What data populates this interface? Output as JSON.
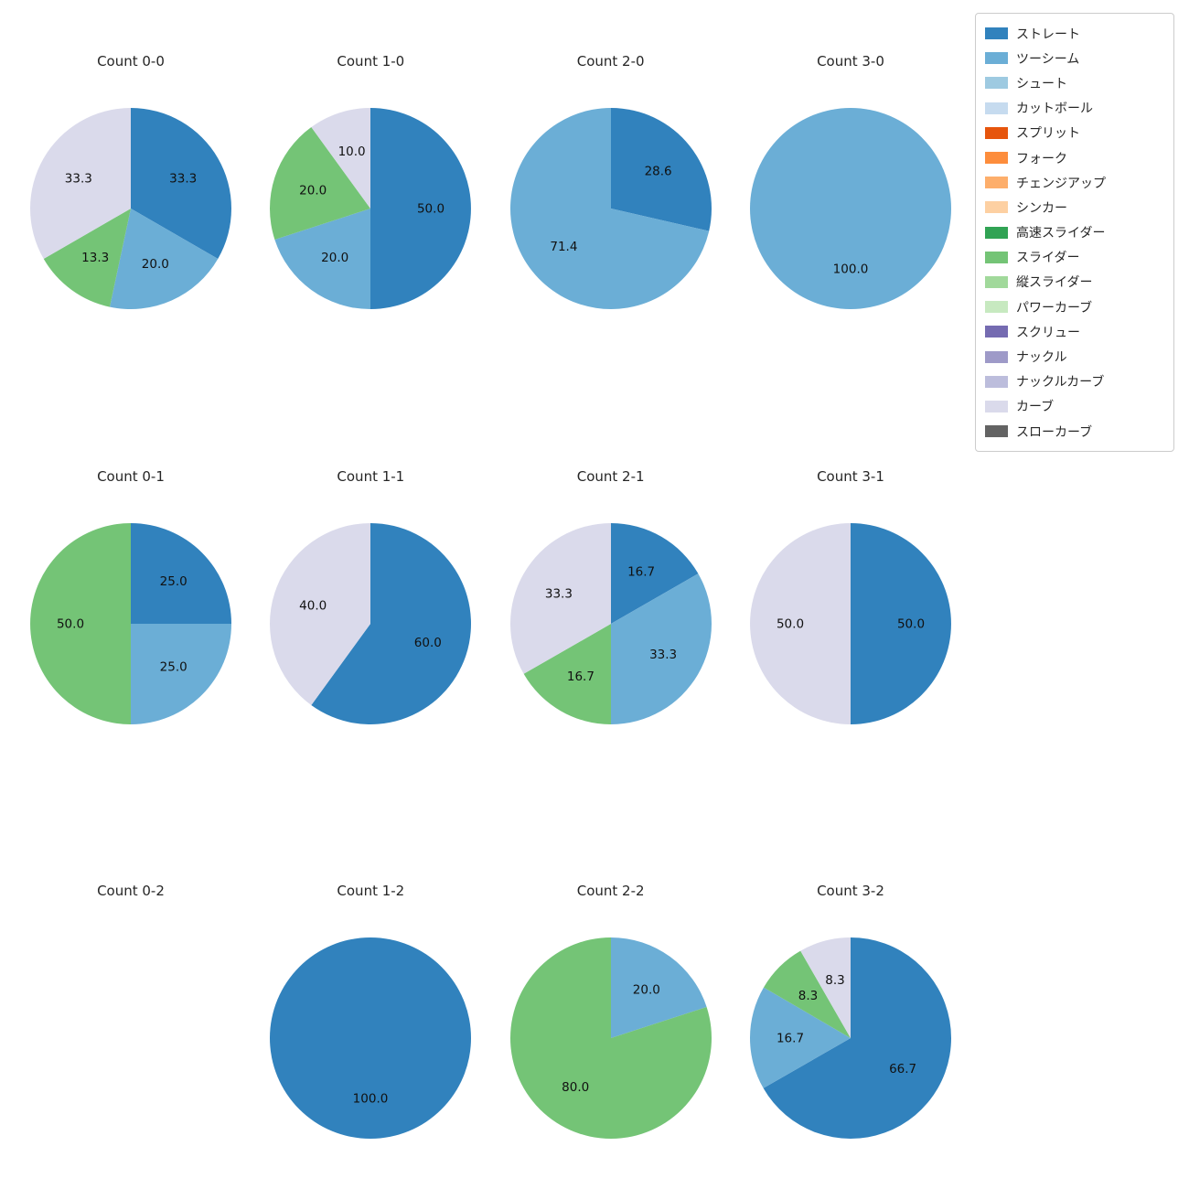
{
  "legend": {
    "items": [
      {
        "label": "ストレート",
        "color": "#3182bd"
      },
      {
        "label": "ツーシーム",
        "color": "#6baed6"
      },
      {
        "label": "シュート",
        "color": "#9ecae1"
      },
      {
        "label": "カットボール",
        "color": "#c6dbef"
      },
      {
        "label": "スプリット",
        "color": "#e6550d"
      },
      {
        "label": "フォーク",
        "color": "#fd8d3c"
      },
      {
        "label": "チェンジアップ",
        "color": "#fdae6b"
      },
      {
        "label": "シンカー",
        "color": "#fdd0a2"
      },
      {
        "label": "高速スライダー",
        "color": "#31a354"
      },
      {
        "label": "スライダー",
        "color": "#74c476"
      },
      {
        "label": "縦スライダー",
        "color": "#a1d99b"
      },
      {
        "label": "パワーカーブ",
        "color": "#c7e9c0"
      },
      {
        "label": "スクリュー",
        "color": "#756bb1"
      },
      {
        "label": "ナックル",
        "color": "#9e9ac8"
      },
      {
        "label": "ナックルカーブ",
        "color": "#bcbddc"
      },
      {
        "label": "カーブ",
        "color": "#dadaeb"
      },
      {
        "label": "スローカーブ",
        "color": "#636363"
      }
    ]
  },
  "chart_data": [
    {
      "type": "pie",
      "title": "Count 0-0",
      "slices": [
        {
          "label": "ストレート",
          "value": 33.3
        },
        {
          "label": "ツーシーム",
          "value": 20.0
        },
        {
          "label": "スライダー",
          "value": 13.3
        },
        {
          "label": "カーブ",
          "value": 33.3
        }
      ]
    },
    {
      "type": "pie",
      "title": "Count 1-0",
      "slices": [
        {
          "label": "ストレート",
          "value": 50.0
        },
        {
          "label": "ツーシーム",
          "value": 20.0
        },
        {
          "label": "スライダー",
          "value": 20.0
        },
        {
          "label": "カーブ",
          "value": 10.0
        }
      ]
    },
    {
      "type": "pie",
      "title": "Count 2-0",
      "slices": [
        {
          "label": "ストレート",
          "value": 28.6
        },
        {
          "label": "ツーシーム",
          "value": 71.4
        }
      ]
    },
    {
      "type": "pie",
      "title": "Count 3-0",
      "slices": [
        {
          "label": "ツーシーム",
          "value": 100.0
        }
      ]
    },
    {
      "type": "pie",
      "title": "Count 0-1",
      "slices": [
        {
          "label": "ストレート",
          "value": 25.0
        },
        {
          "label": "ツーシーム",
          "value": 25.0
        },
        {
          "label": "スライダー",
          "value": 50.0
        }
      ]
    },
    {
      "type": "pie",
      "title": "Count 1-1",
      "slices": [
        {
          "label": "ストレート",
          "value": 60.0
        },
        {
          "label": "カーブ",
          "value": 40.0
        }
      ]
    },
    {
      "type": "pie",
      "title": "Count 2-1",
      "slices": [
        {
          "label": "ストレート",
          "value": 16.7
        },
        {
          "label": "ツーシーム",
          "value": 33.3
        },
        {
          "label": "スライダー",
          "value": 16.7
        },
        {
          "label": "カーブ",
          "value": 33.3
        }
      ]
    },
    {
      "type": "pie",
      "title": "Count 3-1",
      "slices": [
        {
          "label": "ストレート",
          "value": 50.0
        },
        {
          "label": "カーブ",
          "value": 50.0
        }
      ]
    },
    {
      "type": "pie",
      "title": "Count 0-2",
      "slices": []
    },
    {
      "type": "pie",
      "title": "Count 1-2",
      "slices": [
        {
          "label": "ストレート",
          "value": 100.0
        }
      ]
    },
    {
      "type": "pie",
      "title": "Count 2-2",
      "slices": [
        {
          "label": "ツーシーム",
          "value": 20.0
        },
        {
          "label": "スライダー",
          "value": 80.0
        }
      ]
    },
    {
      "type": "pie",
      "title": "Count 3-2",
      "slices": [
        {
          "label": "ストレート",
          "value": 66.7
        },
        {
          "label": "ツーシーム",
          "value": 16.7
        },
        {
          "label": "スライダー",
          "value": 8.3
        },
        {
          "label": "カーブ",
          "value": 8.3
        }
      ]
    }
  ]
}
